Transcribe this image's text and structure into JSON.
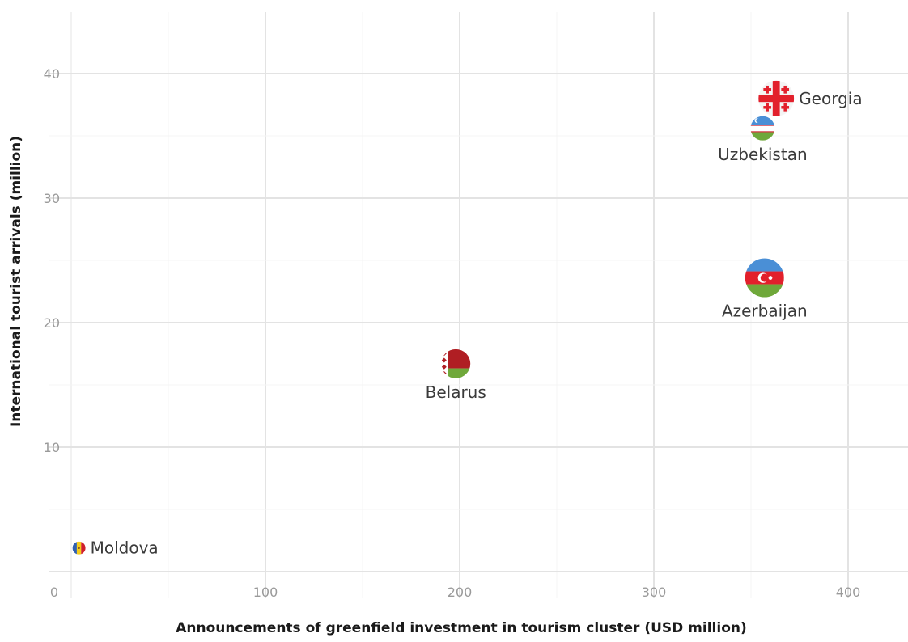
{
  "chart_data": {
    "type": "scatter",
    "title": "",
    "xlabel": "Announcements of greenfield investment in tourism cluster (USD million)",
    "ylabel": "International tourist arrivals  (million)",
    "xlim": [
      0,
      430
    ],
    "ylim": [
      0,
      45
    ],
    "x_ticks": [
      0,
      100,
      200,
      300,
      400
    ],
    "y_ticks": [
      10,
      20,
      30,
      40
    ],
    "grid": true,
    "legend": "none",
    "points": [
      {
        "label": "Georgia",
        "x": 363,
        "y": 38.0,
        "size": 22,
        "icon": "flag-georgia-icon",
        "label_pos": "right"
      },
      {
        "label": "Uzbekistan",
        "x": 356,
        "y": 35.6,
        "size": 15,
        "icon": "flag-uzbekistan-icon",
        "label_pos": "below"
      },
      {
        "label": "Azerbaijan",
        "x": 357,
        "y": 23.6,
        "size": 24,
        "icon": "flag-azerbaijan-icon",
        "label_pos": "below"
      },
      {
        "label": "Belarus",
        "x": 198,
        "y": 16.7,
        "size": 18,
        "icon": "flag-belarus-icon",
        "label_pos": "below"
      },
      {
        "label": "Moldova",
        "x": 4,
        "y": 1.9,
        "size": 8,
        "icon": "flag-moldova-icon",
        "label_pos": "right"
      }
    ]
  }
}
